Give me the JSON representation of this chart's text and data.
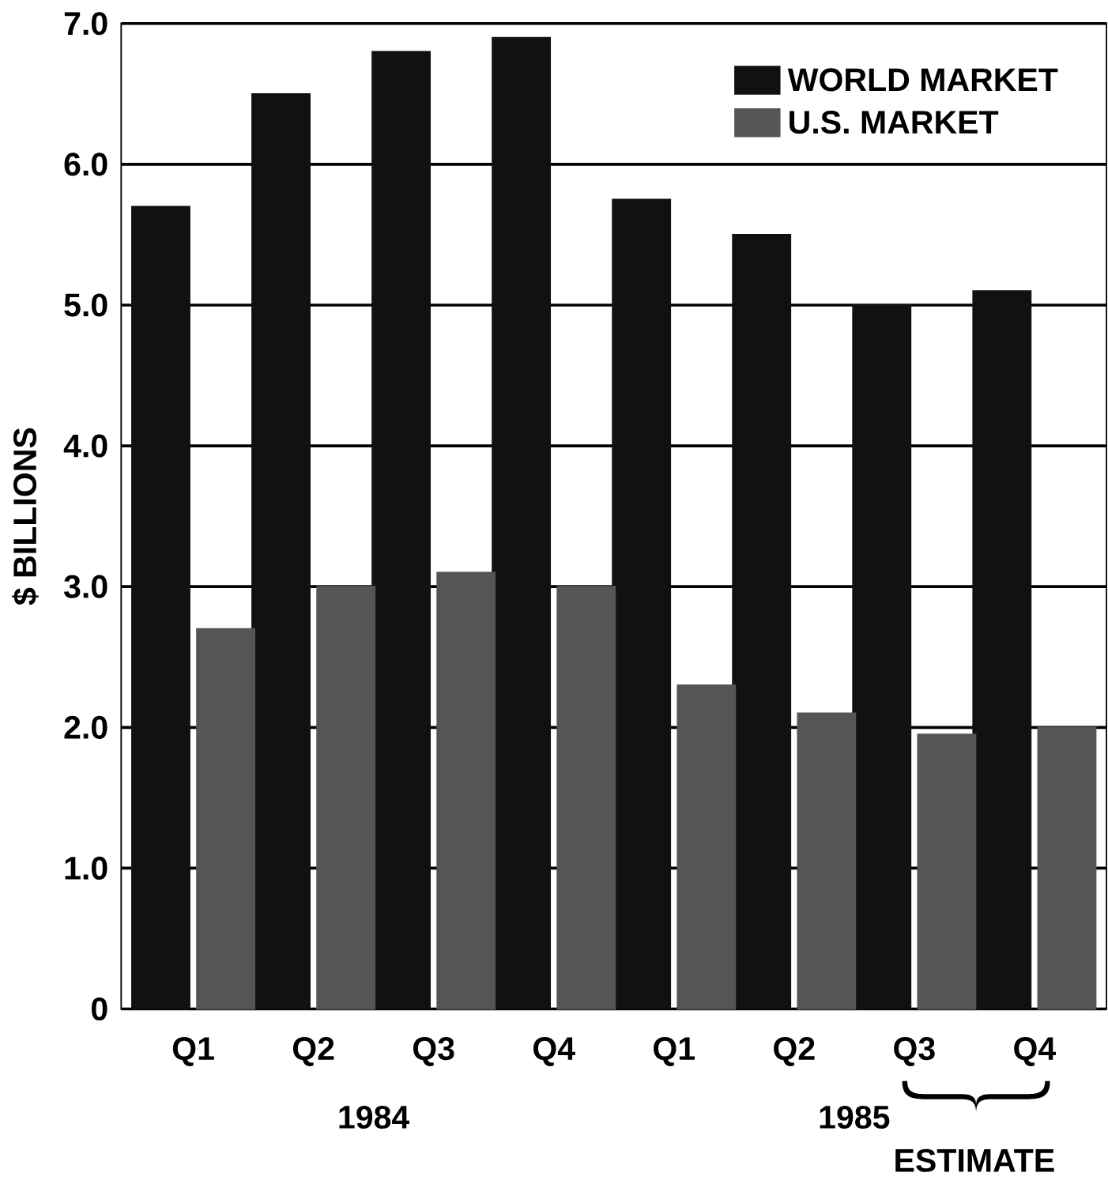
{
  "chart_data": {
    "type": "bar",
    "ylabel": "$ BILLIONS",
    "categories": [
      "Q1",
      "Q2",
      "Q3",
      "Q4",
      "Q1",
      "Q2",
      "Q3",
      "Q4"
    ],
    "series": [
      {
        "name": "WORLD MARKET",
        "color": "#111111",
        "values": [
          5.7,
          6.5,
          6.8,
          6.9,
          5.75,
          5.5,
          5.0,
          5.1
        ]
      },
      {
        "name": "U.S. MARKET",
        "color": "#555555",
        "values": [
          2.7,
          3.0,
          3.1,
          3.0,
          2.3,
          2.1,
          1.95,
          2.0
        ]
      }
    ],
    "ylim": [
      0,
      7
    ],
    "yticks": [
      0,
      {
        "value": 1,
        "label": "1.0"
      },
      {
        "value": 2,
        "label": "2.0"
      },
      {
        "value": 3,
        "label": "3.0"
      },
      {
        "value": 4,
        "label": "4.0"
      },
      {
        "value": 5,
        "label": "5.0"
      },
      {
        "value": 6,
        "label": "6.0"
      },
      {
        "value": 7,
        "label": "7.0"
      }
    ],
    "grid": "y",
    "legend": "top right",
    "annotations": [
      "1984",
      "1985",
      "ESTIMATE"
    ]
  }
}
